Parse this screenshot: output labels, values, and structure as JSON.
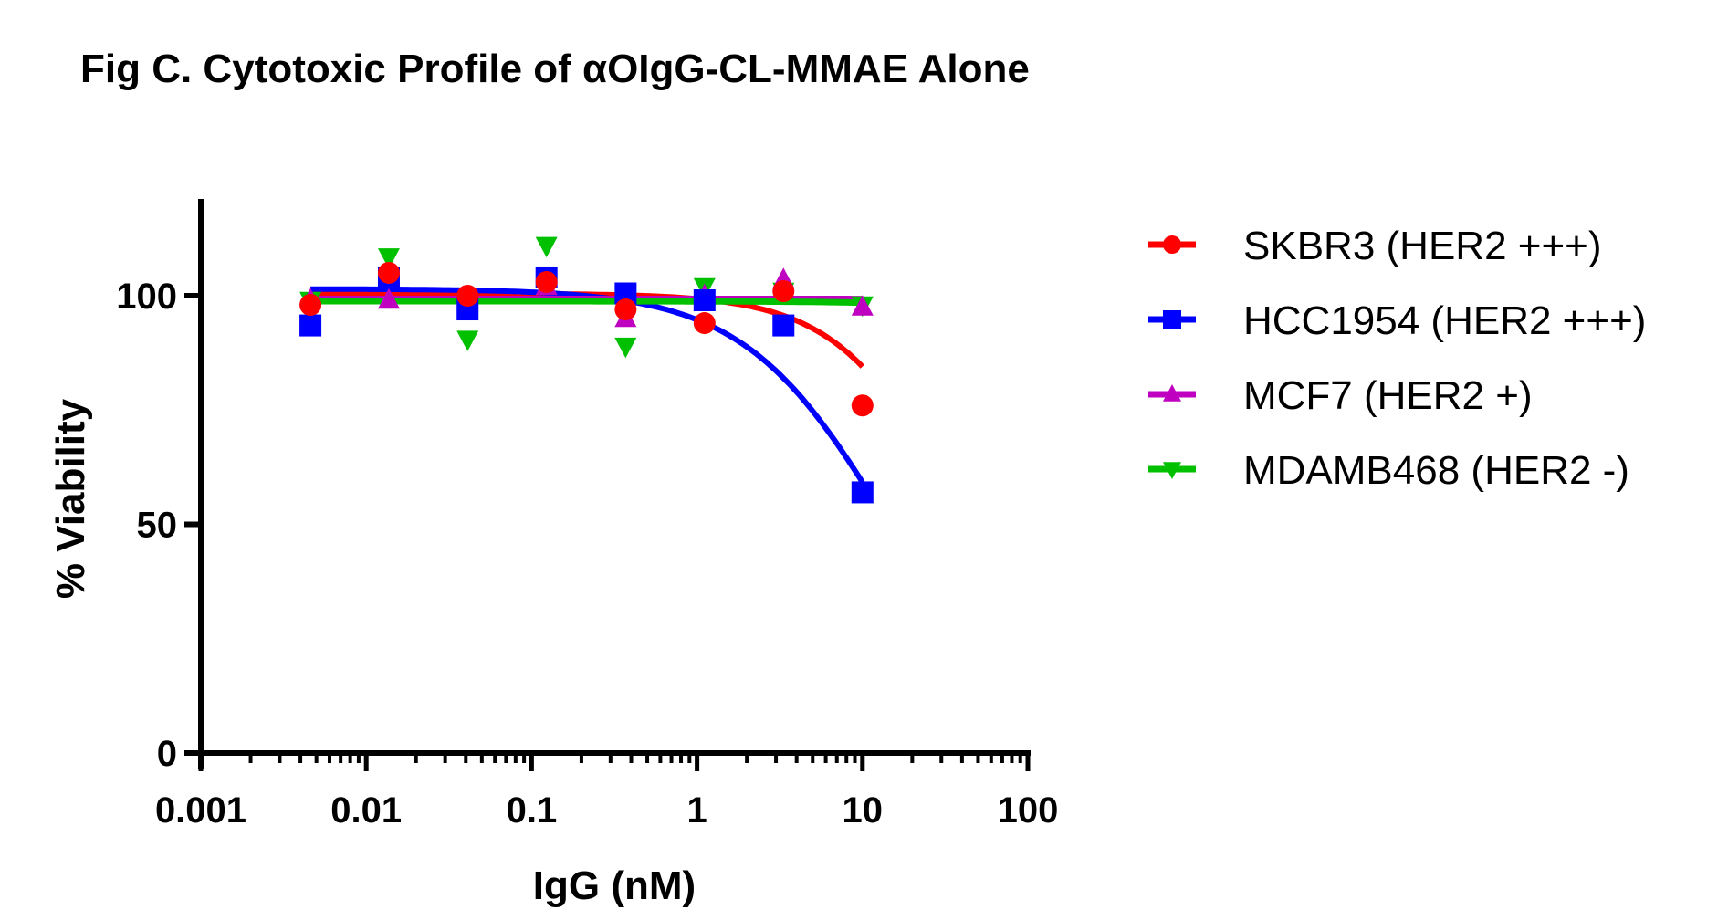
{
  "chart_data": {
    "type": "scatter",
    "title": "Fig C. Cytotoxic Profile of αOIgG-CL-MMAE Alone",
    "xlabel": "IgG (nM)",
    "ylabel": "% Viability",
    "xscale": "log",
    "xlim": [
      0.001,
      100
    ],
    "ylim": [
      0,
      120
    ],
    "xticks": [
      0.001,
      0.01,
      0.1,
      1,
      10,
      100
    ],
    "xtick_labels": [
      "0.001",
      "0.01",
      "0.1",
      "1",
      "10",
      "100"
    ],
    "yticks": [
      0,
      50,
      100
    ],
    "ytick_labels": [
      "0",
      "50",
      "100"
    ],
    "grid": false,
    "legend_position": "right",
    "x": [
      0.0046,
      0.0137,
      0.041,
      0.123,
      0.37,
      1.11,
      3.33,
      10
    ],
    "series": [
      {
        "name": "SKBR3 (HER2 +++)",
        "color": "#ff0000",
        "marker": "circle",
        "values": [
          98,
          105,
          100,
          103,
          97,
          94,
          101,
          76
        ],
        "fit": {
          "top": 100.5,
          "bottom": 0,
          "ic50": 40,
          "hill": 1.2
        }
      },
      {
        "name": "HCC1954 (HER2 +++)",
        "color": "#0000ff",
        "marker": "square",
        "values": [
          93.5,
          104,
          97,
          104,
          100.5,
          99,
          93.5,
          57
        ],
        "fit": {
          "top": 101.5,
          "bottom": 0,
          "ic50": 14,
          "hill": 1.0
        }
      },
      {
        "name": "MCF7 (HER2 +)",
        "color": "#c000c0",
        "marker": "triangle-up",
        "values": [
          99,
          99,
          99,
          102,
          95,
          100,
          103.5,
          97.5
        ],
        "fit": {
          "top": 99.3,
          "bottom": 0,
          "ic50": 100000,
          "hill": 1.0
        }
      },
      {
        "name": "MDAMB468 (HER2 -)",
        "color": "#00c000",
        "marker": "triangle-down",
        "values": [
          99,
          108.5,
          90.5,
          111,
          89,
          102,
          101,
          98
        ],
        "fit": {
          "top": 98.8,
          "bottom": 0,
          "ic50": 3000,
          "hill": 1.0
        }
      }
    ]
  }
}
